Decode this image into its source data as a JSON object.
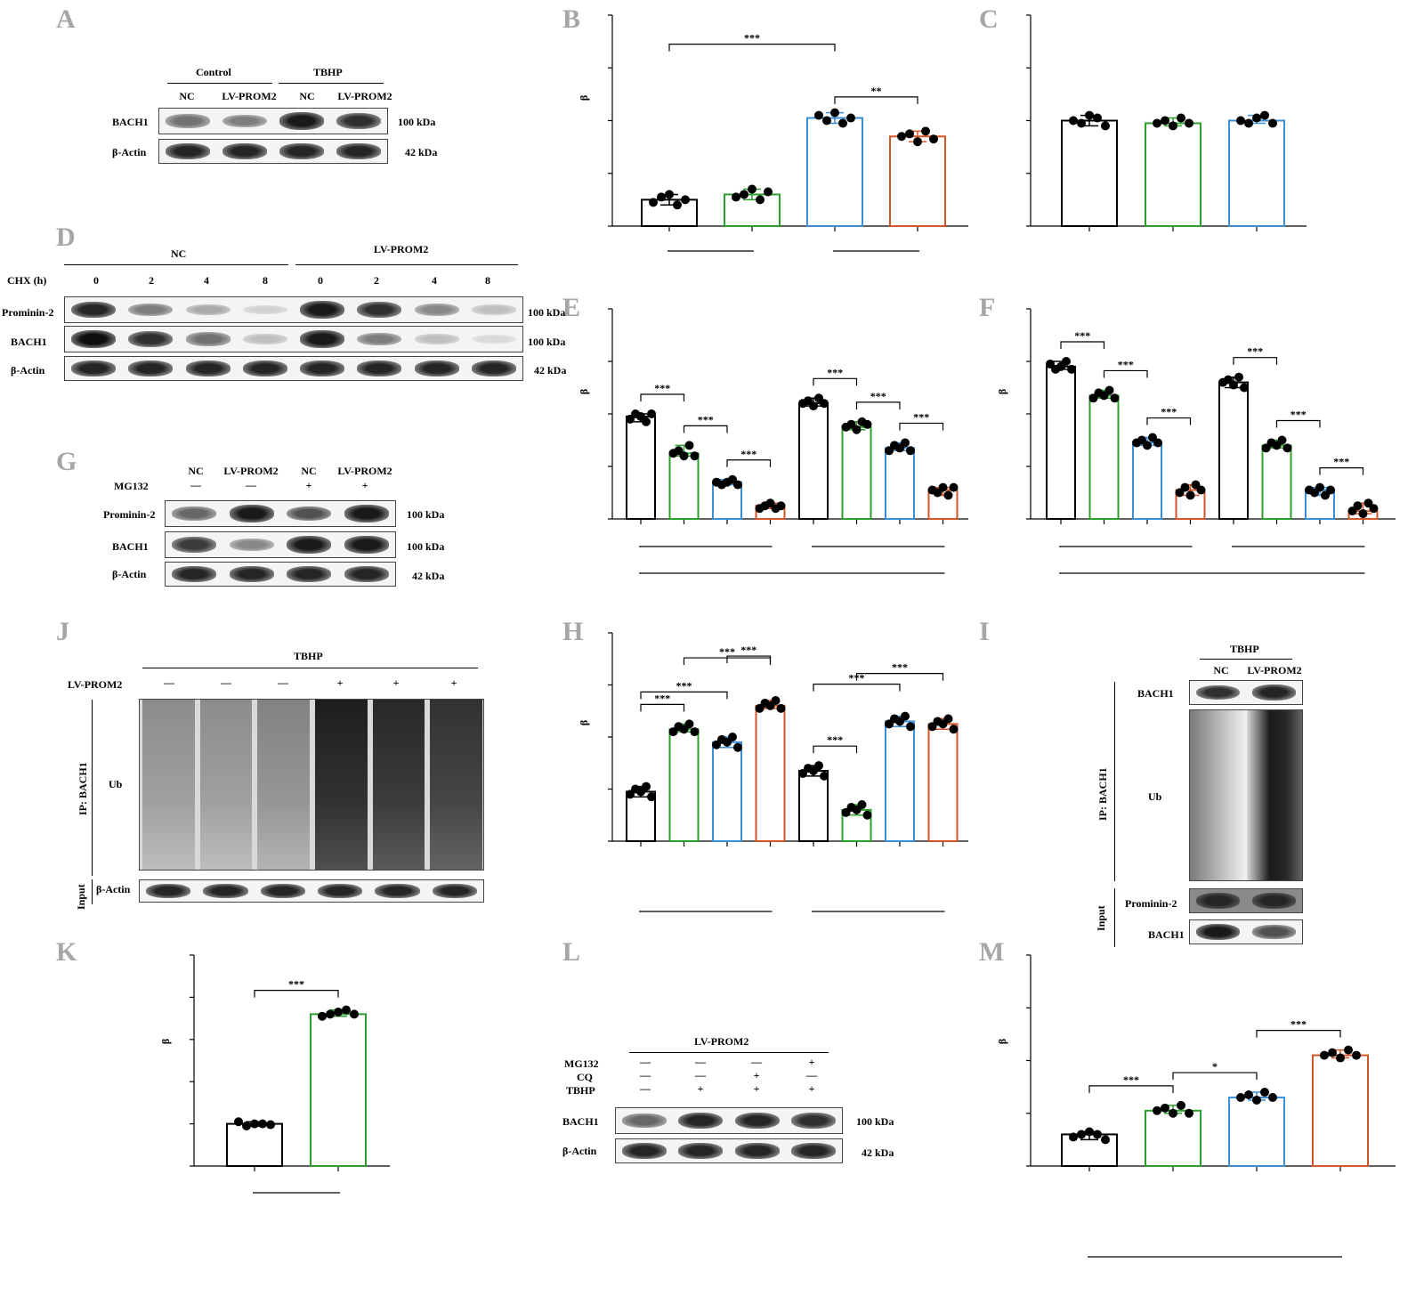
{
  "panel_letters": [
    "A",
    "B",
    "C",
    "D",
    "E",
    "F",
    "G",
    "H",
    "I",
    "J",
    "K",
    "L",
    "M"
  ],
  "colors": {
    "black": "#000000",
    "green": "#2ca02c",
    "blue": "#3a8fd6",
    "orange": "#d4552a"
  },
  "panel_a": {
    "groups": [
      "Control",
      "TBHP"
    ],
    "cols": [
      "NC",
      "LV-PROM2",
      "NC",
      "LV-PROM2"
    ],
    "rows": [
      {
        "name": "BACH1",
        "kda": "100 kDa",
        "intensity": [
          0.55,
          0.5,
          0.95,
          0.85
        ]
      },
      {
        "name": "β-Actin",
        "kda": "42 kDa",
        "intensity": [
          0.9,
          0.9,
          0.9,
          0.9
        ]
      }
    ]
  },
  "panel_d": {
    "groups": [
      "NC",
      "LV-PROM2"
    ],
    "chx_label": "CHX (h)",
    "times": [
      "0",
      "2",
      "4",
      "8",
      "0",
      "2",
      "4",
      "8"
    ],
    "rows": [
      {
        "name": "Prominin-2",
        "kda": "100 kDa",
        "intensity": [
          0.9,
          0.5,
          0.3,
          0.12,
          0.95,
          0.85,
          0.45,
          0.2
        ]
      },
      {
        "name": "BACH1",
        "kda": "100 kDa",
        "intensity": [
          1.0,
          0.85,
          0.55,
          0.2,
          0.95,
          0.5,
          0.2,
          0.08
        ]
      },
      {
        "name": "β-Actin",
        "kda": "42 kDa",
        "intensity": [
          0.9,
          0.9,
          0.9,
          0.9,
          0.9,
          0.9,
          0.9,
          0.9
        ]
      }
    ]
  },
  "panel_g": {
    "cols": [
      "NC",
      "LV-PROM2",
      "NC",
      "LV-PROM2"
    ],
    "mg132_label": "MG132",
    "mg132": [
      "—",
      "—",
      "+",
      "+"
    ],
    "rows": [
      {
        "name": "Prominin-2",
        "kda": "100 kDa",
        "intensity": [
          0.6,
          0.95,
          0.7,
          0.95
        ]
      },
      {
        "name": "BACH1",
        "kda": "100 kDa",
        "intensity": [
          0.8,
          0.45,
          0.95,
          0.95
        ]
      },
      {
        "name": "β-Actin",
        "kda": "42 kDa",
        "intensity": [
          0.9,
          0.9,
          0.9,
          0.9
        ]
      }
    ]
  },
  "panel_j": {
    "group": "TBHP",
    "lv_label": "LV-PROM2",
    "lv": [
      "—",
      "—",
      "—",
      "+",
      "+",
      "+"
    ],
    "ip_label": "IP: BACH1",
    "ub_label": "Ub",
    "input_label": "Input",
    "actin_label": "β-Actin",
    "ub_intensity": [
      0.35,
      0.35,
      0.4,
      0.9,
      0.85,
      0.8
    ]
  },
  "panel_i": {
    "group": "TBHP",
    "cols": [
      "NC",
      "LV-PROM2"
    ],
    "ip_label": "IP: BACH1",
    "input_label": "Input",
    "rows": [
      {
        "name": "BACH1"
      },
      {
        "name": "Ub"
      },
      {
        "name": "Prominin-2"
      },
      {
        "name": "BACH1"
      }
    ]
  },
  "panel_l": {
    "group": "LV-PROM2",
    "treatments": [
      {
        "name": "MG132",
        "values": [
          "—",
          "—",
          "—",
          "+"
        ]
      },
      {
        "name": "CQ",
        "values": [
          "—",
          "—",
          "+",
          "—"
        ]
      },
      {
        "name": "TBHP",
        "values": [
          "—",
          "+",
          "+",
          "+"
        ]
      }
    ],
    "rows": [
      {
        "name": "BACH1",
        "kda": "100 kDa",
        "intensity": [
          0.6,
          0.9,
          0.9,
          0.85
        ]
      },
      {
        "name": "β-Actin",
        "kda": "42 kDa",
        "intensity": [
          0.9,
          0.9,
          0.9,
          0.9
        ]
      }
    ]
  },
  "chart_data": [
    {
      "panel": "B",
      "type": "bar",
      "ylabel": "β",
      "ylim": [
        0,
        4
      ],
      "values": [
        0.5,
        0.6,
        2.05,
        1.7
      ],
      "colors": [
        "black",
        "green",
        "blue",
        "orange"
      ],
      "points": [
        [
          0.45,
          0.55,
          0.6,
          0.4,
          0.5
        ],
        [
          0.55,
          0.6,
          0.7,
          0.5,
          0.65
        ],
        [
          2.1,
          2.0,
          2.15,
          1.95,
          2.05
        ],
        [
          1.7,
          1.75,
          1.6,
          1.8,
          1.65
        ]
      ],
      "group_lines": [
        [
          0,
          1
        ],
        [
          2,
          3
        ]
      ],
      "significance": [
        {
          "from": 0,
          "to": 2,
          "label": "***"
        },
        {
          "from": 2,
          "to": 3,
          "label": "**"
        }
      ]
    },
    {
      "panel": "C",
      "type": "bar",
      "ylabel": "",
      "ylim": [
        0,
        4
      ],
      "values": [
        2.0,
        1.95,
        2.0
      ],
      "colors": [
        "black",
        "green",
        "blue"
      ],
      "points": [
        [
          2.0,
          1.95,
          2.1,
          2.05,
          1.9
        ],
        [
          1.95,
          2.0,
          1.9,
          2.05,
          1.95
        ],
        [
          2.0,
          1.95,
          2.05,
          2.1,
          1.95
        ]
      ],
      "group_lines": [],
      "significance": []
    },
    {
      "panel": "E",
      "type": "bar",
      "ylabel": "β",
      "ylim": [
        0,
        4
      ],
      "values": [
        1.95,
        1.25,
        0.7,
        0.25,
        2.2,
        1.75,
        1.35,
        0.55
      ],
      "colors": [
        "black",
        "green",
        "blue",
        "orange",
        "black",
        "green",
        "blue",
        "orange"
      ],
      "points": [
        [
          1.9,
          2.0,
          1.95,
          1.85,
          2.0
        ],
        [
          1.25,
          1.3,
          1.2,
          1.4,
          1.2
        ],
        [
          0.7,
          0.65,
          0.7,
          0.75,
          0.65
        ],
        [
          0.2,
          0.25,
          0.3,
          0.2,
          0.25
        ],
        [
          2.2,
          2.25,
          2.15,
          2.3,
          2.2
        ],
        [
          1.75,
          1.8,
          1.7,
          1.85,
          1.8
        ],
        [
          1.3,
          1.4,
          1.35,
          1.45,
          1.3
        ],
        [
          0.55,
          0.5,
          0.6,
          0.45,
          0.6
        ]
      ],
      "group_lines": [
        [
          0,
          3
        ],
        [
          4,
          7
        ]
      ],
      "outer_line": [
        0,
        7
      ],
      "significance": [
        {
          "from": 0,
          "to": 1,
          "label": "***"
        },
        {
          "from": 1,
          "to": 2,
          "label": "***"
        },
        {
          "from": 2,
          "to": 3,
          "label": "***"
        },
        {
          "from": 4,
          "to": 5,
          "label": "***"
        },
        {
          "from": 5,
          "to": 6,
          "label": "***"
        },
        {
          "from": 6,
          "to": 7,
          "label": "***"
        }
      ]
    },
    {
      "panel": "F",
      "type": "bar",
      "ylabel": "β",
      "ylim": [
        0,
        4
      ],
      "values": [
        2.9,
        2.35,
        1.45,
        0.55,
        2.6,
        1.4,
        0.55,
        0.15
      ],
      "colors": [
        "black",
        "green",
        "blue",
        "orange",
        "black",
        "green",
        "blue",
        "orange"
      ],
      "points": [
        [
          2.95,
          2.85,
          2.9,
          3.0,
          2.85
        ],
        [
          2.3,
          2.4,
          2.35,
          2.45,
          2.3
        ],
        [
          1.45,
          1.5,
          1.4,
          1.55,
          1.45
        ],
        [
          0.5,
          0.6,
          0.45,
          0.65,
          0.55
        ],
        [
          2.6,
          2.65,
          2.55,
          2.7,
          2.5
        ],
        [
          1.35,
          1.45,
          1.4,
          1.5,
          1.35
        ],
        [
          0.55,
          0.5,
          0.6,
          0.45,
          0.55
        ],
        [
          0.15,
          0.25,
          0.1,
          0.3,
          0.2
        ]
      ],
      "group_lines": [
        [
          0,
          3
        ],
        [
          4,
          7
        ]
      ],
      "outer_line": [
        0,
        7
      ],
      "significance": [
        {
          "from": 0,
          "to": 1,
          "label": "***"
        },
        {
          "from": 1,
          "to": 2,
          "label": "***"
        },
        {
          "from": 2,
          "to": 3,
          "label": "***"
        },
        {
          "from": 4,
          "to": 5,
          "label": "***"
        },
        {
          "from": 5,
          "to": 6,
          "label": "***"
        },
        {
          "from": 6,
          "to": 7,
          "label": "***"
        }
      ]
    },
    {
      "panel": "H",
      "type": "bar",
      "ylabel": "β",
      "ylim": [
        0,
        4
      ],
      "values": [
        0.95,
        2.15,
        1.9,
        2.6,
        1.35,
        0.6,
        2.3,
        2.25
      ],
      "colors": [
        "black",
        "green",
        "blue",
        "orange",
        "black",
        "green",
        "blue",
        "orange"
      ],
      "points": [
        [
          0.9,
          1.0,
          0.95,
          1.05,
          0.85
        ],
        [
          2.1,
          2.2,
          2.15,
          2.25,
          2.1
        ],
        [
          1.85,
          1.95,
          1.9,
          2.0,
          1.8
        ],
        [
          2.55,
          2.65,
          2.6,
          2.7,
          2.55
        ],
        [
          1.3,
          1.4,
          1.35,
          1.45,
          1.25
        ],
        [
          0.55,
          0.65,
          0.6,
          0.7,
          0.5
        ],
        [
          2.25,
          2.35,
          2.3,
          2.4,
          2.2
        ],
        [
          2.2,
          2.3,
          2.25,
          2.35,
          2.15
        ]
      ],
      "group_lines": [
        [
          0,
          3
        ],
        [
          4,
          7
        ]
      ],
      "significance": [
        {
          "from": 0,
          "to": 1,
          "label": "***"
        },
        {
          "from": 0,
          "to": 2,
          "label": "***"
        },
        {
          "from": 1,
          "to": 3,
          "label": "***"
        },
        {
          "from": 2,
          "to": 3,
          "label": "***"
        },
        {
          "from": 4,
          "to": 5,
          "label": "***"
        },
        {
          "from": 4,
          "to": 6,
          "label": "***"
        },
        {
          "from": 5,
          "to": 7,
          "label": "***"
        }
      ]
    },
    {
      "panel": "K",
      "type": "bar",
      "ylabel": "β",
      "ylim": [
        0,
        5
      ],
      "values": [
        1.0,
        3.6
      ],
      "colors": [
        "black",
        "green"
      ],
      "points": [
        [
          1.05,
          0.95,
          1.0,
          1.0,
          0.98
        ],
        [
          3.55,
          3.6,
          3.65,
          3.7,
          3.6
        ]
      ],
      "group_lines": [
        [
          0,
          1
        ]
      ],
      "significance": [
        {
          "from": 0,
          "to": 1,
          "label": "***"
        }
      ]
    },
    {
      "panel": "M",
      "type": "bar",
      "ylabel": "β",
      "ylim": [
        0,
        4
      ],
      "values": [
        0.6,
        1.05,
        1.3,
        2.1
      ],
      "colors": [
        "black",
        "green",
        "blue",
        "orange"
      ],
      "points": [
        [
          0.55,
          0.6,
          0.65,
          0.6,
          0.5
        ],
        [
          1.05,
          1.1,
          1.0,
          1.15,
          1.0
        ],
        [
          1.3,
          1.35,
          1.25,
          1.4,
          1.3
        ],
        [
          2.1,
          2.15,
          2.05,
          2.2,
          2.1
        ]
      ],
      "group_lines": [],
      "outer_line": [
        0,
        3
      ],
      "significance": [
        {
          "from": 0,
          "to": 1,
          "label": "***"
        },
        {
          "from": 1,
          "to": 2,
          "label": "*"
        },
        {
          "from": 2,
          "to": 3,
          "label": "***"
        }
      ]
    }
  ]
}
